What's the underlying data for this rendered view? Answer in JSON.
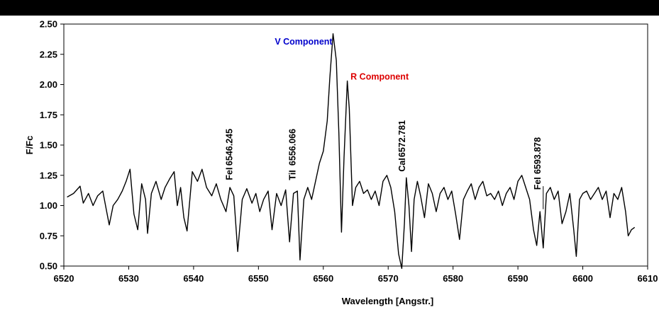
{
  "chart_data": {
    "type": "line",
    "title": "",
    "xlabel": "Wavelength [Angstr.]",
    "ylabel": "F/Fc",
    "xlim": [
      6520,
      6610
    ],
    "ylim": [
      0.5,
      2.5
    ],
    "x_ticks": [
      6520,
      6530,
      6540,
      6550,
      6560,
      6570,
      6580,
      6590,
      6600,
      6610
    ],
    "y_ticks": [
      "0.50",
      "0.75",
      "1.00",
      "1.25",
      "1.50",
      "1.75",
      "2.00",
      "2.25",
      "2.50"
    ],
    "grid": false,
    "legend": "none",
    "line_color": "#000000",
    "series": [
      {
        "x": [
          6520.5,
          6521.5,
          6522.5,
          6523.0,
          6523.8,
          6524.5,
          6525.2,
          6526.0,
          6526.6,
          6527.0,
          6527.6,
          6528.3,
          6529.0,
          6529.6,
          6530.2,
          6530.8,
          6531.4,
          6532.0,
          6532.6,
          6532.9,
          6533.5,
          6534.2,
          6535.0,
          6535.6,
          6536.3,
          6537.0,
          6537.5,
          6538.0,
          6538.5,
          6539.0,
          6539.8,
          6540.6,
          6541.3,
          6542.0,
          6542.8,
          6543.5,
          6544.2,
          6545.0,
          6545.6,
          6546.2,
          6546.8,
          6547.5,
          6548.2,
          6549.0,
          6549.6,
          6550.2,
          6550.8,
          6551.5,
          6552.1,
          6552.8,
          6553.5,
          6554.2,
          6554.8,
          6555.4,
          6556.0,
          6556.4,
          6557.0,
          6557.6,
          6558.2,
          6558.8,
          6559.4,
          6560.0,
          6560.6,
          6561.0,
          6561.5,
          6562.0,
          6562.4,
          6562.8,
          6563.2,
          6563.7,
          6564.0,
          6564.5,
          6565.0,
          6565.6,
          6566.2,
          6566.8,
          6567.4,
          6568.0,
          6568.6,
          6569.2,
          6569.8,
          6570.4,
          6571.0,
          6571.6,
          6572.1,
          6572.5,
          6572.8,
          6573.2,
          6573.6,
          6574.0,
          6574.5,
          6575.0,
          6575.6,
          6576.2,
          6576.8,
          6577.4,
          6578.0,
          6578.6,
          6579.2,
          6579.8,
          6580.4,
          6581.0,
          6581.6,
          6582.2,
          6582.8,
          6583.4,
          6584.0,
          6584.6,
          6585.2,
          6585.8,
          6586.4,
          6587.0,
          6587.6,
          6588.2,
          6588.8,
          6589.4,
          6590.0,
          6590.6,
          6591.2,
          6591.8,
          6592.4,
          6592.9,
          6593.4,
          6593.9,
          6594.4,
          6595.0,
          6595.6,
          6596.2,
          6596.8,
          6597.4,
          6598.0,
          6598.6,
          6599.0,
          6599.5,
          6600.0,
          6600.6,
          6601.2,
          6601.8,
          6602.4,
          6603.0,
          6603.6,
          6604.2,
          6604.8,
          6605.4,
          6606.0,
          6606.6,
          6607.0,
          6607.5,
          6608.0
        ],
        "values": [
          1.07,
          1.1,
          1.16,
          1.02,
          1.1,
          1.0,
          1.08,
          1.12,
          0.95,
          0.84,
          1.0,
          1.05,
          1.12,
          1.2,
          1.3,
          0.93,
          0.8,
          1.18,
          1.05,
          0.77,
          1.1,
          1.2,
          1.05,
          1.15,
          1.22,
          1.28,
          1.0,
          1.15,
          0.9,
          0.79,
          1.28,
          1.2,
          1.3,
          1.15,
          1.08,
          1.18,
          1.05,
          0.95,
          1.15,
          1.08,
          0.62,
          1.05,
          1.14,
          1.02,
          1.1,
          0.95,
          1.05,
          1.12,
          0.8,
          1.1,
          1.0,
          1.13,
          0.7,
          1.1,
          1.12,
          0.55,
          1.05,
          1.15,
          1.05,
          1.2,
          1.35,
          1.45,
          1.7,
          2.05,
          2.42,
          2.2,
          1.6,
          0.78,
          1.4,
          2.03,
          1.8,
          1.0,
          1.15,
          1.2,
          1.1,
          1.13,
          1.05,
          1.12,
          1.0,
          1.2,
          1.25,
          1.15,
          0.95,
          0.6,
          0.48,
          0.85,
          1.23,
          1.0,
          0.62,
          1.05,
          1.2,
          1.08,
          0.9,
          1.18,
          1.1,
          0.95,
          1.1,
          1.15,
          1.05,
          1.12,
          0.93,
          0.72,
          1.05,
          1.12,
          1.18,
          1.05,
          1.15,
          1.2,
          1.08,
          1.1,
          1.05,
          1.12,
          1.0,
          1.1,
          1.15,
          1.05,
          1.2,
          1.25,
          1.15,
          1.05,
          0.8,
          0.67,
          0.95,
          0.65,
          1.1,
          1.15,
          1.05,
          1.12,
          0.85,
          0.95,
          1.1,
          0.8,
          0.58,
          1.05,
          1.1,
          1.12,
          1.05,
          1.1,
          1.15,
          1.05,
          1.12,
          0.9,
          1.1,
          1.05,
          1.15,
          0.95,
          0.75,
          0.8,
          0.82
        ]
      }
    ],
    "annotations": [
      {
        "text": "V Component",
        "x": 6561.4,
        "y": 2.33,
        "color": "#0000cc",
        "rotation": 0,
        "anchor": "end"
      },
      {
        "text": "R Component",
        "x": 6564.2,
        "y": 2.04,
        "color": "#dd0000",
        "rotation": 0,
        "anchor": "start"
      },
      {
        "text": "FeI",
        "x": 6546.0,
        "y": 1.21,
        "color": "#000000",
        "rotation": -90,
        "anchor": "start"
      },
      {
        "text": "6546.245",
        "x": 6546.0,
        "y": 1.33,
        "color": "#000000",
        "rotation": -90,
        "anchor": "start"
      },
      {
        "text": "TiI",
        "x": 6555.7,
        "y": 1.21,
        "color": "#000000",
        "rotation": -90,
        "anchor": "start"
      },
      {
        "text": "6556.066",
        "x": 6555.7,
        "y": 1.33,
        "color": "#000000",
        "rotation": -90,
        "anchor": "start"
      },
      {
        "text": "CaI",
        "x": 6572.6,
        "y": 1.28,
        "color": "#000000",
        "rotation": -90,
        "anchor": "start"
      },
      {
        "text": "6572.781",
        "x": 6572.6,
        "y": 1.4,
        "color": "#000000",
        "rotation": -90,
        "anchor": "start"
      },
      {
        "text": "FeI",
        "x": 6593.5,
        "y": 1.13,
        "color": "#000000",
        "rotation": -90,
        "anchor": "start"
      },
      {
        "text": "6593.878",
        "x": 6593.5,
        "y": 1.26,
        "color": "#000000",
        "rotation": -90,
        "anchor": "start"
      }
    ],
    "marker_lines": [
      {
        "x": 6593.9,
        "y_from": 0.97,
        "y_to": 1.16
      }
    ]
  }
}
